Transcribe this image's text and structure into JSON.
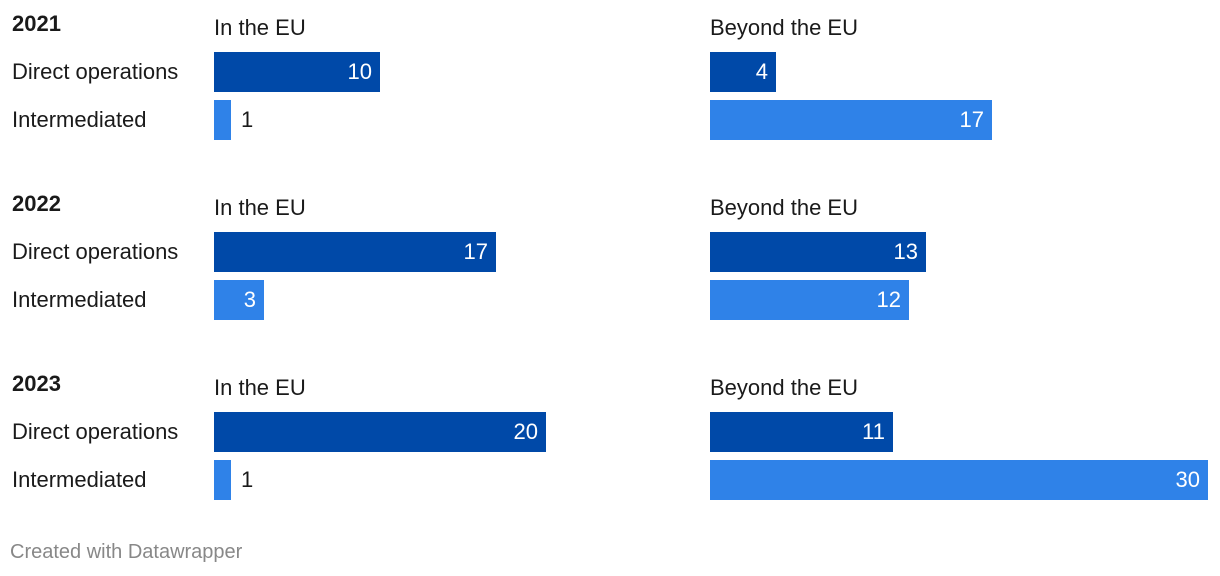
{
  "chart_data": {
    "type": "bar",
    "orientation": "horizontal",
    "panels": [
      "In the EU",
      "Beyond the EU"
    ],
    "categories": [
      "Direct operations",
      "Intermediated"
    ],
    "groups": [
      {
        "year": "2021",
        "in_eu": {
          "label": "In the EU",
          "direct": 10,
          "intermediated": 1
        },
        "beyond_eu": {
          "label": "Beyond the EU",
          "direct": 4,
          "intermediated": 17
        }
      },
      {
        "year": "2022",
        "in_eu": {
          "label": "In the EU",
          "direct": 17,
          "intermediated": 3
        },
        "beyond_eu": {
          "label": "Beyond the EU",
          "direct": 13,
          "intermediated": 12
        }
      },
      {
        "year": "2023",
        "in_eu": {
          "label": "In the EU",
          "direct": 20,
          "intermediated": 1
        },
        "beyond_eu": {
          "label": "Beyond the EU",
          "direct": 11,
          "intermediated": 30
        }
      }
    ],
    "xlim": [
      0,
      30
    ],
    "colors": {
      "direct": "#0049a8",
      "intermediated": "#2f82e8"
    }
  },
  "footer": {
    "credit": "Created with Datawrapper"
  }
}
